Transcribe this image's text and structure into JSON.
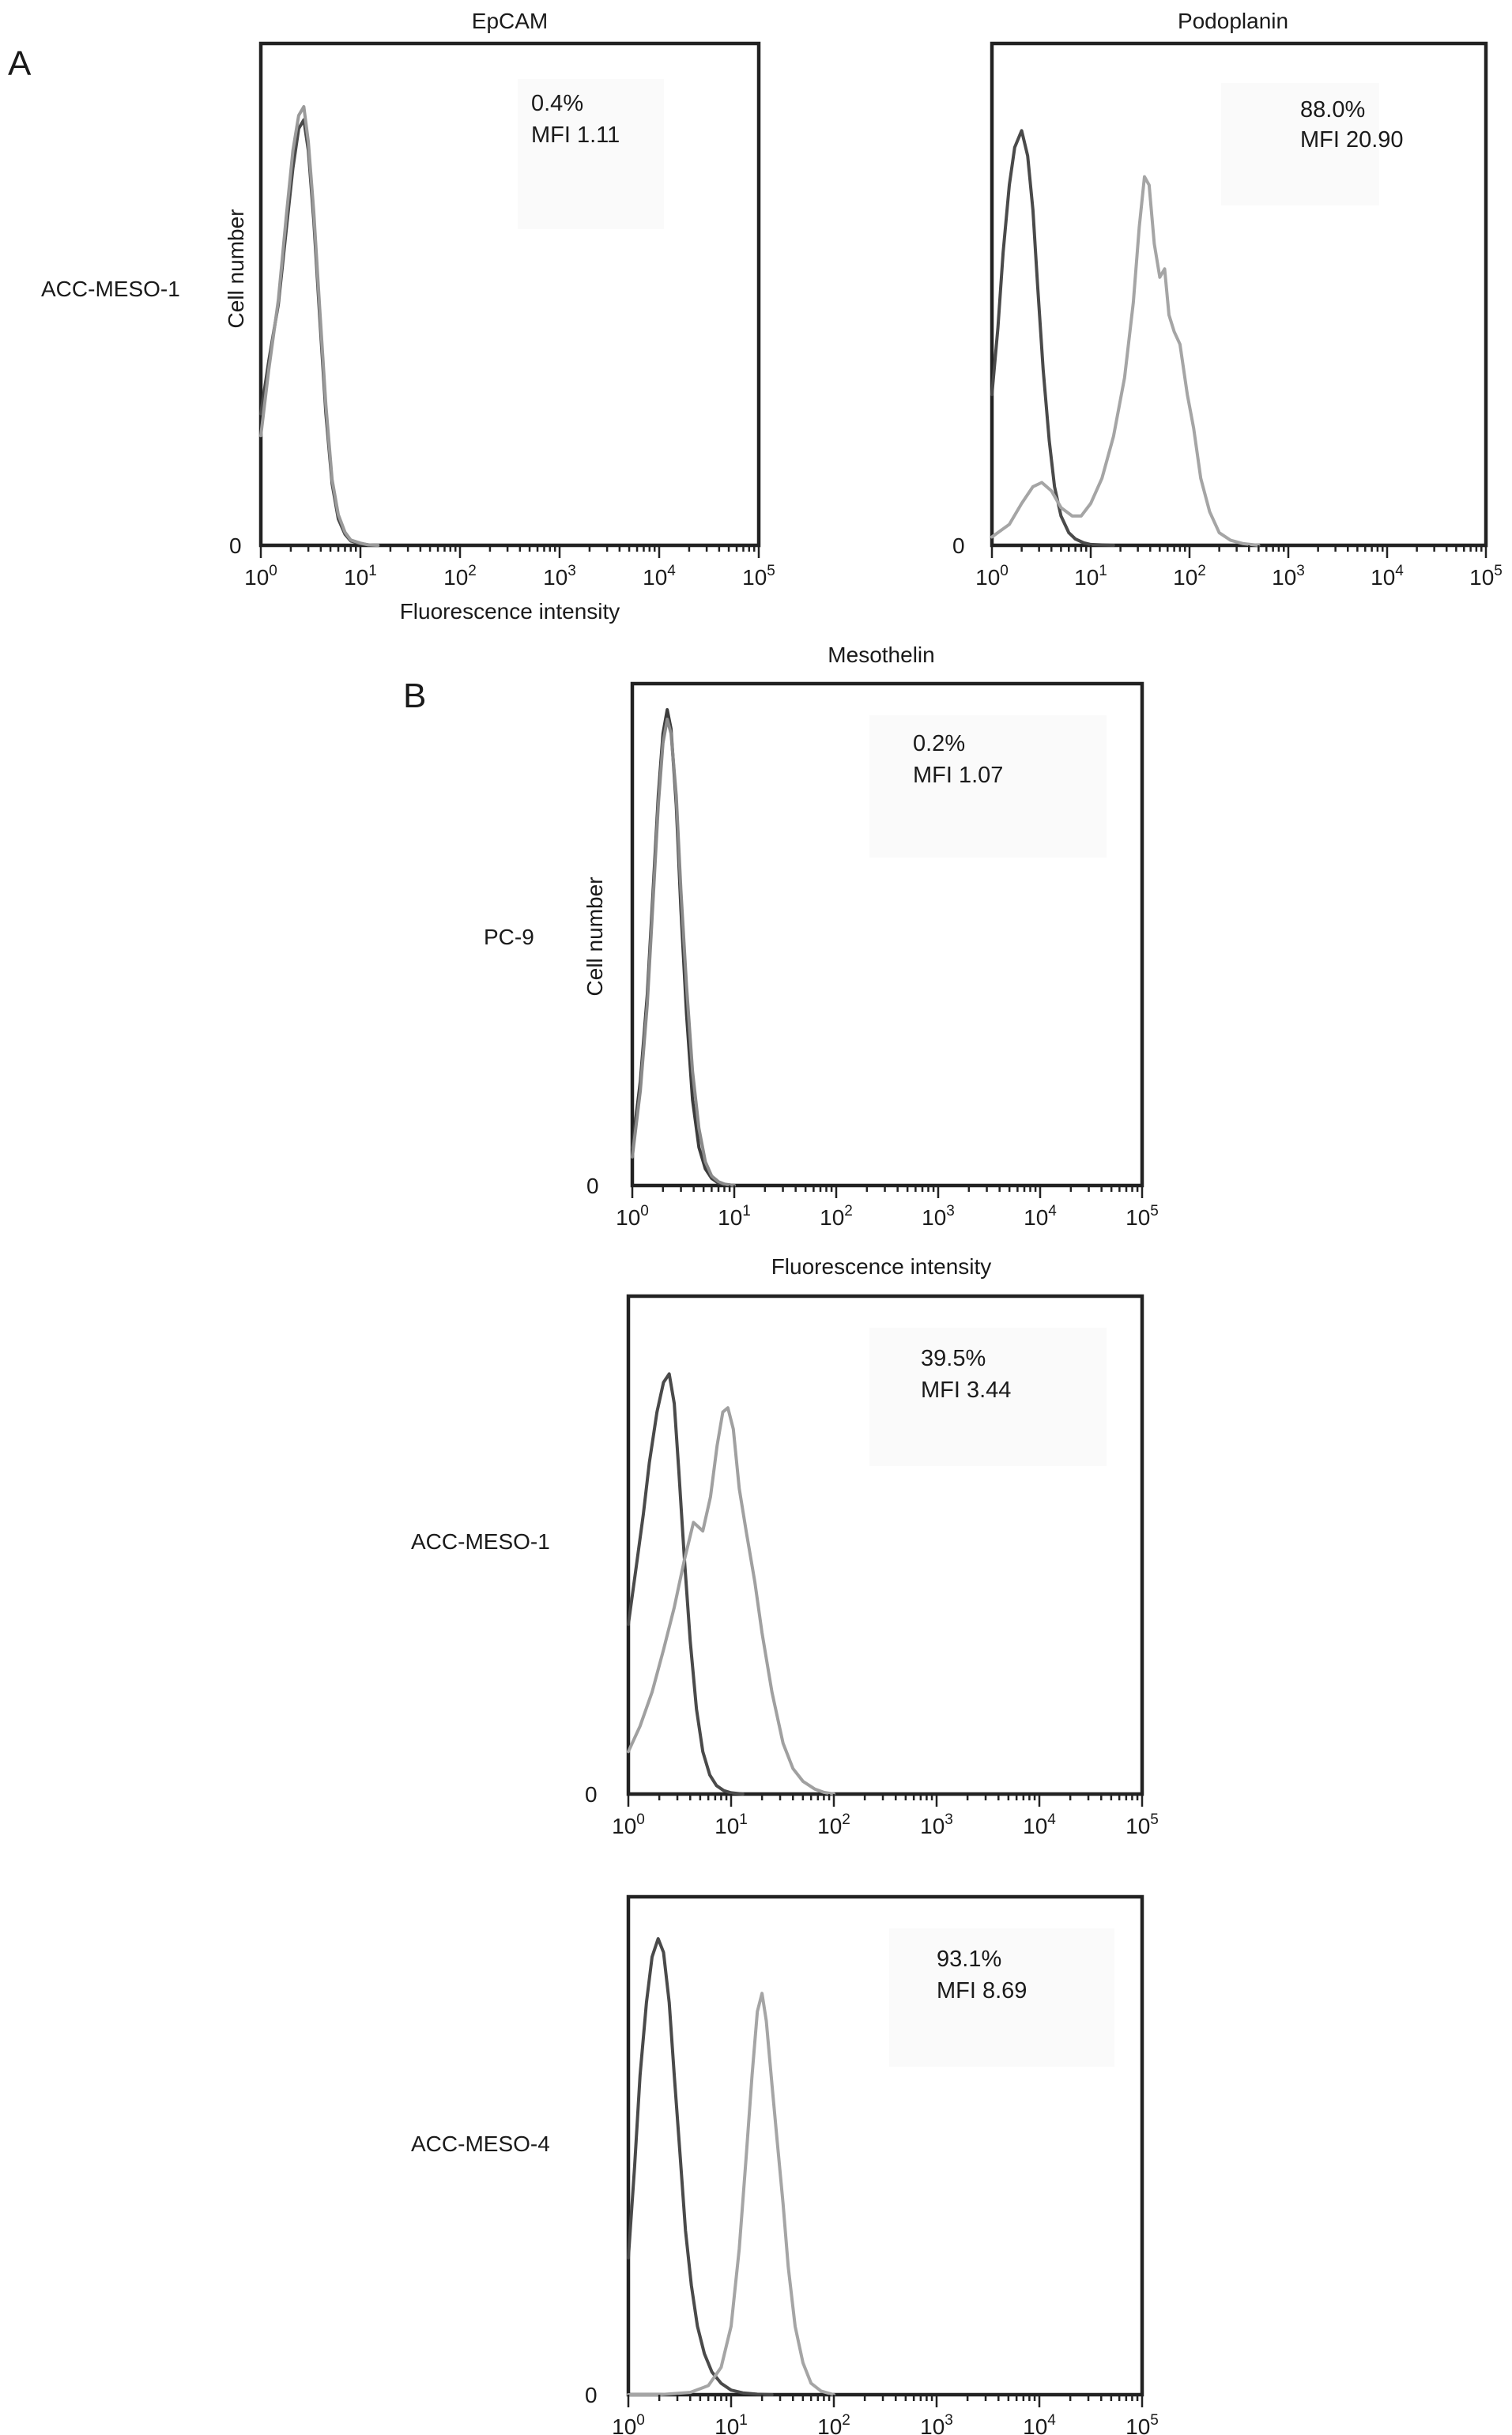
{
  "panel_letters": [
    "A",
    "B"
  ],
  "chart_data": [
    {
      "type": "line",
      "panel": "A",
      "title": "EpCAM",
      "row_label": "ACC-MESO-1",
      "xlabel": "Fluorescence intensity",
      "ylabel": "Cell number",
      "x_scale": "log",
      "xlim": [
        1,
        100000
      ],
      "x_ticks": [
        "10^0",
        "10^1",
        "10^2",
        "10^3",
        "10^4",
        "10^5"
      ],
      "y_ticks": [
        "0"
      ],
      "annotation": [
        "0.4%",
        "MFI 1.11"
      ],
      "series": [
        {
          "color": "#4a4a4a",
          "x": [
            1,
            1.2,
            1.5,
            1.8,
            2.1,
            2.4,
            2.7,
            3.0,
            3.4,
            3.9,
            4.5,
            5.2,
            6.0,
            7.0,
            8.0,
            10,
            12,
            15
          ],
          "y": [
            0.3,
            0.42,
            0.55,
            0.72,
            0.86,
            0.95,
            0.97,
            0.9,
            0.74,
            0.52,
            0.3,
            0.14,
            0.06,
            0.025,
            0.01,
            0.004,
            0.001,
            0
          ]
        },
        {
          "color": "#9a9a9a",
          "x": [
            1,
            1.2,
            1.5,
            1.8,
            2.1,
            2.4,
            2.7,
            3.0,
            3.4,
            3.9,
            4.5,
            5.2,
            6.0,
            7.0,
            8.0,
            10,
            12,
            15
          ],
          "y": [
            0.25,
            0.4,
            0.56,
            0.75,
            0.9,
            0.98,
            1.0,
            0.92,
            0.76,
            0.54,
            0.32,
            0.15,
            0.07,
            0.03,
            0.012,
            0.005,
            0.001,
            0
          ]
        }
      ]
    },
    {
      "type": "line",
      "panel": "A",
      "title": "Podoplanin",
      "xlabel": "",
      "ylabel": "",
      "x_scale": "log",
      "xlim": [
        1,
        100000
      ],
      "x_ticks": [
        "10^0",
        "10^1",
        "10^2",
        "10^3",
        "10^4",
        "10^5"
      ],
      "y_ticks": [
        "0"
      ],
      "annotation": [
        "88.0%",
        "MFI 20.90"
      ],
      "series": [
        {
          "color": "#4a4a4a",
          "x": [
            1,
            1.15,
            1.3,
            1.5,
            1.7,
            2.0,
            2.3,
            2.6,
            2.9,
            3.3,
            3.8,
            4.3,
            5.0,
            6.0,
            7.0,
            8.5,
            10,
            13,
            17
          ],
          "y": [
            0.36,
            0.52,
            0.7,
            0.86,
            0.95,
            0.99,
            0.93,
            0.8,
            0.62,
            0.42,
            0.25,
            0.14,
            0.07,
            0.03,
            0.015,
            0.006,
            0.002,
            0.001,
            0
          ]
        },
        {
          "color": "#a5a5a5",
          "x": [
            1,
            1.5,
            2,
            2.6,
            3.2,
            4,
            5,
            6.5,
            8,
            10,
            13,
            17,
            22,
            27,
            31,
            35,
            39,
            44,
            50,
            56,
            62,
            70,
            80,
            95,
            110,
            130,
            160,
            200,
            260,
            350,
            500
          ],
          "y": [
            0.02,
            0.05,
            0.1,
            0.14,
            0.15,
            0.13,
            0.09,
            0.07,
            0.07,
            0.1,
            0.16,
            0.26,
            0.4,
            0.58,
            0.76,
            0.88,
            0.86,
            0.72,
            0.64,
            0.66,
            0.55,
            0.51,
            0.48,
            0.36,
            0.28,
            0.16,
            0.08,
            0.03,
            0.012,
            0.004,
            0
          ]
        }
      ]
    },
    {
      "type": "line",
      "panel": "B",
      "title": "Mesothelin",
      "row_label": "PC-9",
      "xlabel": "Fluorescence intensity",
      "ylabel": "Cell number",
      "x_scale": "log",
      "xlim": [
        1,
        100000
      ],
      "x_ticks": [
        "10^0",
        "10^1",
        "10^2",
        "10^3",
        "10^4",
        "10^5"
      ],
      "y_ticks": [
        "0"
      ],
      "annotation": [
        "0.2%",
        "MFI 1.07"
      ],
      "series": [
        {
          "color": "#3c3c3c",
          "x": [
            1,
            1.2,
            1.4,
            1.6,
            1.8,
            2.0,
            2.2,
            2.4,
            2.7,
            3.0,
            3.4,
            3.9,
            4.5,
            5.2,
            6.0,
            7.0,
            8.0,
            10
          ],
          "y": [
            0.08,
            0.22,
            0.4,
            0.62,
            0.82,
            0.95,
            1.0,
            0.96,
            0.8,
            0.58,
            0.36,
            0.18,
            0.08,
            0.035,
            0.015,
            0.005,
            0.002,
            0
          ]
        },
        {
          "color": "#8a8a8a",
          "x": [
            1,
            1.2,
            1.4,
            1.6,
            1.8,
            2.0,
            2.2,
            2.4,
            2.7,
            3.0,
            3.4,
            3.9,
            4.5,
            5.2,
            6.0,
            7.0,
            8.0,
            10
          ],
          "y": [
            0.06,
            0.2,
            0.38,
            0.6,
            0.8,
            0.93,
            0.98,
            0.95,
            0.82,
            0.62,
            0.42,
            0.24,
            0.12,
            0.05,
            0.02,
            0.008,
            0.003,
            0
          ]
        }
      ]
    },
    {
      "type": "line",
      "panel": "B",
      "title": "",
      "row_label": "ACC-MESO-1",
      "xlabel": "",
      "ylabel": "",
      "x_scale": "log",
      "xlim": [
        1,
        100000
      ],
      "x_ticks": [
        "10^0",
        "10^1",
        "10^2",
        "10^3",
        "10^4",
        "10^5"
      ],
      "y_ticks": [
        "0"
      ],
      "annotation": [
        "39.5%",
        "MFI 3.44"
      ],
      "series": [
        {
          "color": "#4a4a4a",
          "x": [
            1,
            1.2,
            1.4,
            1.6,
            1.9,
            2.2,
            2.5,
            2.8,
            3.1,
            3.5,
            4.0,
            4.6,
            5.3,
            6.2,
            7.2,
            8.5,
            10,
            13
          ],
          "y": [
            0.4,
            0.54,
            0.66,
            0.78,
            0.9,
            0.97,
            0.99,
            0.92,
            0.76,
            0.56,
            0.36,
            0.2,
            0.1,
            0.045,
            0.02,
            0.008,
            0.003,
            0
          ]
        },
        {
          "color": "#a0a0a0",
          "x": [
            1,
            1.3,
            1.7,
            2.2,
            2.8,
            3.5,
            4.3,
            5.3,
            6.3,
            7.3,
            8.3,
            9.3,
            10.5,
            12,
            14,
            17,
            20,
            25,
            32,
            40,
            50,
            65,
            80,
            100
          ],
          "y": [
            0.1,
            0.16,
            0.24,
            0.34,
            0.44,
            0.55,
            0.64,
            0.62,
            0.7,
            0.82,
            0.9,
            0.91,
            0.86,
            0.72,
            0.62,
            0.5,
            0.38,
            0.24,
            0.12,
            0.06,
            0.03,
            0.012,
            0.004,
            0
          ]
        }
      ]
    },
    {
      "type": "line",
      "panel": "B",
      "title": "",
      "row_label": "ACC-MESO-4",
      "xlabel": "",
      "ylabel": "",
      "x_scale": "log",
      "xlim": [
        1,
        100000
      ],
      "x_ticks": [
        "10^0",
        "10^1",
        "10^2",
        "10^3",
        "10^4",
        "10^5"
      ],
      "y_ticks": [
        "0"
      ],
      "annotation": [
        "93.1%",
        "MFI 8.69"
      ],
      "series": [
        {
          "color": "#4a4a4a",
          "x": [
            1,
            1.15,
            1.3,
            1.5,
            1.7,
            1.95,
            2.2,
            2.5,
            2.8,
            3.2,
            3.6,
            4.1,
            4.7,
            5.5,
            6.5,
            8,
            10,
            13,
            18,
            25
          ],
          "y": [
            0.3,
            0.5,
            0.7,
            0.86,
            0.96,
            1.0,
            0.97,
            0.86,
            0.7,
            0.52,
            0.36,
            0.24,
            0.15,
            0.09,
            0.05,
            0.025,
            0.01,
            0.004,
            0.001,
            0
          ]
        },
        {
          "color": "#a5a5a5",
          "x": [
            1,
            2,
            4,
            6,
            8,
            10,
            12,
            14,
            16,
            18,
            20,
            22,
            25,
            28,
            32,
            36,
            42,
            50,
            60,
            75,
            100
          ],
          "y": [
            0,
            0,
            0.005,
            0.02,
            0.06,
            0.15,
            0.32,
            0.52,
            0.7,
            0.84,
            0.88,
            0.82,
            0.68,
            0.56,
            0.42,
            0.28,
            0.15,
            0.07,
            0.025,
            0.008,
            0
          ]
        }
      ]
    }
  ]
}
